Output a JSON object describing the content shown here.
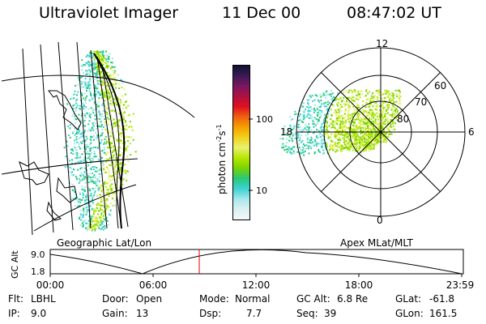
{
  "header": {
    "instrument": "Ultraviolet Imager",
    "date": "11 Dec 00",
    "time": "08:47:02 UT"
  },
  "colorbar": {
    "label": "photon cm",
    "label_sup1": "-2",
    "label_mid": "s",
    "label_sup2": "-1",
    "ticks": [
      "100",
      "10"
    ],
    "colors": [
      "#111133",
      "#3b1a55",
      "#7a1860",
      "#b01040",
      "#e01020",
      "#f06010",
      "#f5a000",
      "#f2d21a",
      "#e8f070",
      "#b8e600",
      "#78d400",
      "#28c878",
      "#3cd2d2",
      "#a6e8ec",
      "#dcf0f2",
      "#f4f8f8"
    ]
  },
  "panels": {
    "left_caption": "Geographic Lat/Lon",
    "right_caption": "Apex MLat/MLT"
  },
  "polar": {
    "mlt_labels": {
      "top": "12",
      "left": "18",
      "right": "6",
      "bottom": "0"
    },
    "lat_labels": [
      "60",
      "70",
      "80"
    ]
  },
  "altitude_plot": {
    "ylabel": "GC Alt",
    "yticks": [
      "9.0",
      "1.8"
    ],
    "xticks": [
      "00:00",
      "06:00",
      "12:00",
      "18:00",
      "23:59"
    ],
    "marker_time": "08:47"
  },
  "info": {
    "filter_label": "Flt:",
    "filter_value": "LBHL",
    "ip_label": "IP:",
    "ip_value": "9.0",
    "door_label": "Door:",
    "door_value": "Open",
    "gain_label": "Gain:",
    "gain_value": "13",
    "mode_label": "Mode:",
    "mode_value": "Normal",
    "dsp_label": "Dsp:",
    "dsp_value": "7.7",
    "gcalt_label": "GC Alt:",
    "gcalt_value": "6.8 Re",
    "seq_label": "Seq:",
    "seq_value": "39",
    "glat_label": "GLat:",
    "glat_value": "-61.8",
    "glon_label": "GLon:",
    "glon_value": "161.5"
  }
}
